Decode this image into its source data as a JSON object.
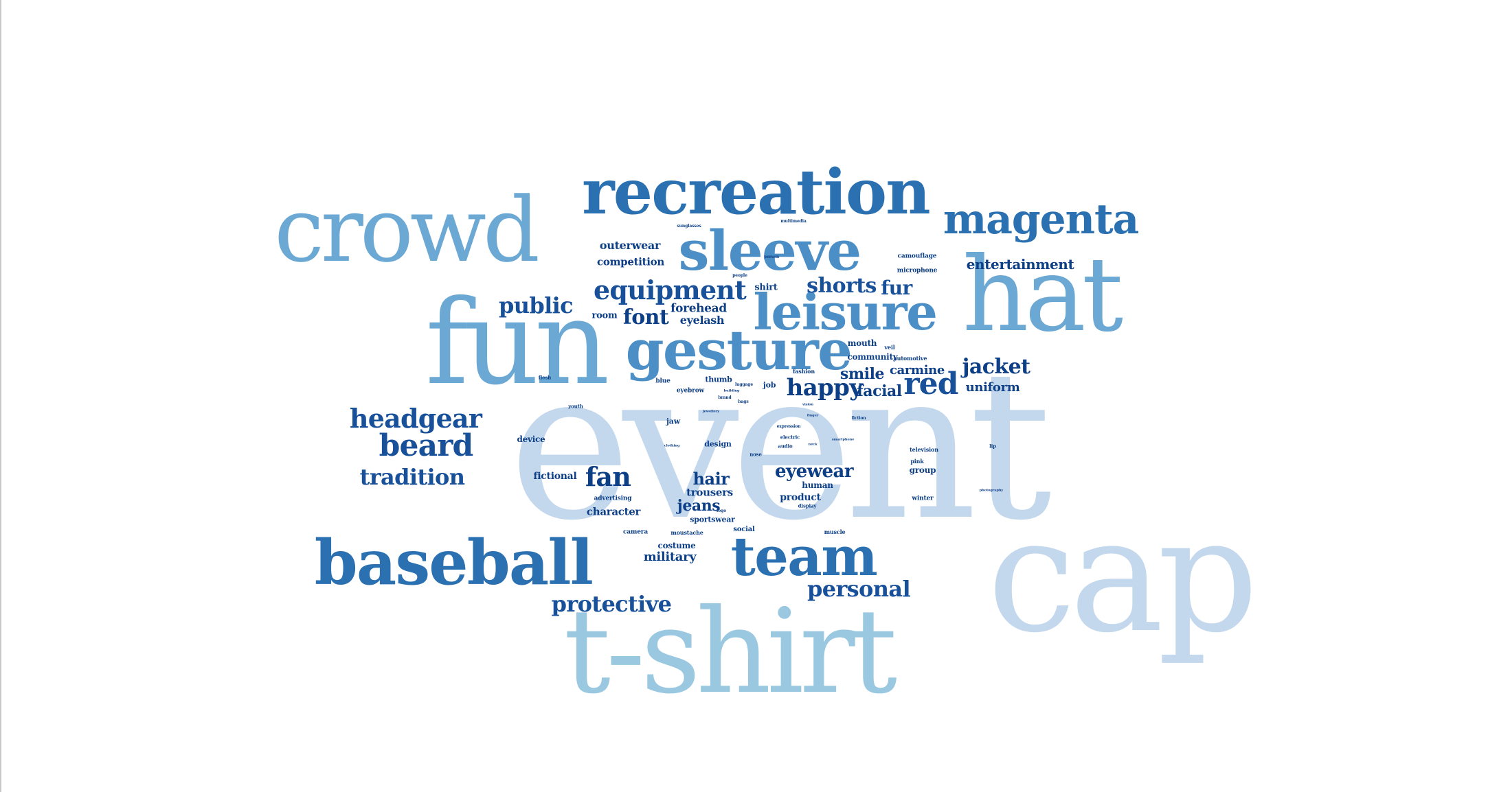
{
  "palette": {
    "lightest": "#c4d8ed",
    "light": "#9ac8e0",
    "mid": "#6ba9d4",
    "medium": "#4b8fc6",
    "strong": "#2b71b1",
    "dark": "#18509a",
    "darkest": "#0d3f87"
  },
  "words": [
    {
      "text": "event",
      "tone": "lightest"
    },
    {
      "text": "cap",
      "tone": "lightest"
    },
    {
      "text": "t-shirt",
      "tone": "light"
    },
    {
      "text": "fun",
      "tone": "mid"
    },
    {
      "text": "hat",
      "tone": "mid"
    },
    {
      "text": "crowd",
      "tone": "mid"
    },
    {
      "text": "recreation",
      "tone": "strong"
    },
    {
      "text": "baseball",
      "tone": "strong"
    },
    {
      "text": "sleeve",
      "tone": "medium"
    },
    {
      "text": "gesture",
      "tone": "medium"
    },
    {
      "text": "leisure",
      "tone": "medium"
    },
    {
      "text": "magenta",
      "tone": "strong"
    },
    {
      "text": "team",
      "tone": "strong"
    },
    {
      "text": "headgear",
      "tone": "dark"
    },
    {
      "text": "beard",
      "tone": "dark"
    },
    {
      "text": "tradition",
      "tone": "dark"
    },
    {
      "text": "equipment",
      "tone": "dark"
    },
    {
      "text": "public",
      "tone": "dark"
    },
    {
      "text": "shorts",
      "tone": "dark"
    },
    {
      "text": "fur",
      "tone": "dark"
    },
    {
      "text": "red",
      "tone": "dark"
    },
    {
      "text": "jacket",
      "tone": "darkest"
    },
    {
      "text": "happy",
      "tone": "darkest"
    },
    {
      "text": "protective",
      "tone": "dark"
    },
    {
      "text": "personal",
      "tone": "dark"
    },
    {
      "text": "fan",
      "tone": "darkest"
    },
    {
      "text": "font",
      "tone": "darkest"
    },
    {
      "text": "eyewear",
      "tone": "darkest"
    },
    {
      "text": "entertainment",
      "tone": "darkest"
    },
    {
      "text": "smile",
      "tone": "darkest"
    },
    {
      "text": "facial",
      "tone": "darkest"
    },
    {
      "text": "uniform",
      "tone": "darkest"
    },
    {
      "text": "carmine",
      "tone": "darkest"
    },
    {
      "text": "hair",
      "tone": "darkest"
    },
    {
      "text": "jeans",
      "tone": "darkest"
    },
    {
      "text": "military",
      "tone": "darkest"
    },
    {
      "text": "outerwear",
      "tone": "darkest"
    },
    {
      "text": "competition",
      "tone": "darkest"
    },
    {
      "text": "forehead",
      "tone": "darkest"
    },
    {
      "text": "eyelash",
      "tone": "darkest"
    },
    {
      "text": "room",
      "tone": "darkest"
    },
    {
      "text": "trousers",
      "tone": "darkest"
    },
    {
      "text": "character",
      "tone": "darkest"
    },
    {
      "text": "fictional",
      "tone": "darkest"
    },
    {
      "text": "human",
      "tone": "darkest"
    },
    {
      "text": "product",
      "tone": "darkest"
    },
    {
      "text": "shirt",
      "tone": "darkest"
    },
    {
      "text": "costume",
      "tone": "darkest"
    },
    {
      "text": "community",
      "tone": "darkest"
    },
    {
      "text": "mouth",
      "tone": "darkest"
    },
    {
      "text": "microphone",
      "tone": "darkest"
    },
    {
      "text": "camouflage",
      "tone": "darkest"
    },
    {
      "text": "group",
      "tone": "darkest"
    },
    {
      "text": "device",
      "tone": "darkest"
    },
    {
      "text": "design",
      "tone": "darkest"
    },
    {
      "text": "sportswear",
      "tone": "darkest"
    },
    {
      "text": "advertising",
      "tone": "darkest"
    },
    {
      "text": "eyebrow",
      "tone": "darkest"
    },
    {
      "text": "thumb",
      "tone": "darkest"
    },
    {
      "text": "job",
      "tone": "darkest"
    },
    {
      "text": "jaw",
      "tone": "darkest"
    },
    {
      "text": "automotive",
      "tone": "darkest"
    },
    {
      "text": "fashion",
      "tone": "darkest"
    },
    {
      "text": "blue",
      "tone": "darkest"
    },
    {
      "text": "social",
      "tone": "darkest"
    },
    {
      "text": "camera",
      "tone": "darkest"
    },
    {
      "text": "moustache",
      "tone": "darkest"
    },
    {
      "text": "television",
      "tone": "darkest"
    },
    {
      "text": "pink",
      "tone": "darkest"
    },
    {
      "text": "winter",
      "tone": "darkest"
    },
    {
      "text": "display",
      "tone": "darkest"
    },
    {
      "text": "youth",
      "tone": "darkest"
    },
    {
      "text": "electric",
      "tone": "darkest"
    },
    {
      "text": "audio",
      "tone": "darkest"
    },
    {
      "text": "nose",
      "tone": "darkest"
    },
    {
      "text": "muscle",
      "tone": "darkest"
    },
    {
      "text": "veil",
      "tone": "darkest"
    },
    {
      "text": "people",
      "tone": "darkest"
    },
    {
      "text": "person",
      "tone": "darkest"
    },
    {
      "text": "luggage",
      "tone": "darkest"
    },
    {
      "text": "bags",
      "tone": "darkest"
    },
    {
      "text": "flesh",
      "tone": "darkest"
    },
    {
      "text": "clothing",
      "tone": "darkest"
    },
    {
      "text": "jewellery",
      "tone": "darkest"
    },
    {
      "text": "sunglasses",
      "tone": "darkest"
    },
    {
      "text": "multimedia",
      "tone": "darkest"
    },
    {
      "text": "fiction",
      "tone": "darkest"
    },
    {
      "text": "expression",
      "tone": "darkest"
    },
    {
      "text": "lip",
      "tone": "darkest"
    },
    {
      "text": "photography",
      "tone": "darkest"
    },
    {
      "text": "logo",
      "tone": "darkest"
    },
    {
      "text": "brand",
      "tone": "darkest"
    },
    {
      "text": "building",
      "tone": "darkest"
    },
    {
      "text": "finger",
      "tone": "darkest"
    },
    {
      "text": "neck",
      "tone": "darkest"
    },
    {
      "text": "smartphone",
      "tone": "darkest"
    },
    {
      "text": "vision",
      "tone": "darkest"
    }
  ]
}
